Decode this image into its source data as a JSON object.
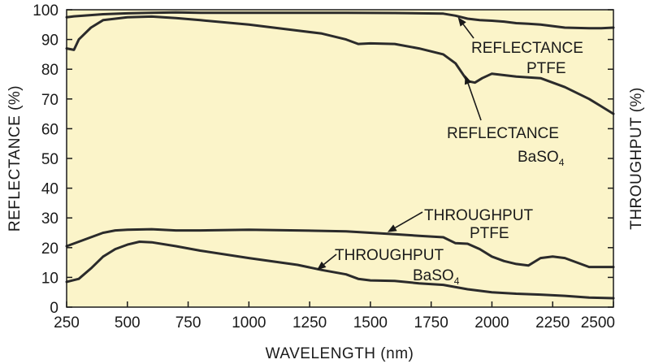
{
  "chart_data": {
    "type": "line",
    "title": "",
    "xlabel": "WAVELENGTH (nm)",
    "ylabel": "REFLECTANCE (%)",
    "ylabel_right": "THROUGHPUT (%)",
    "xlim": [
      250,
      2500
    ],
    "ylim": [
      0,
      100
    ],
    "xticks": [
      250,
      500,
      750,
      1000,
      1250,
      1500,
      1750,
      2000,
      2250,
      2500
    ],
    "yticks": [
      0,
      10,
      20,
      30,
      40,
      50,
      60,
      70,
      80,
      90,
      100
    ],
    "grid": false,
    "colors": {
      "background": "#fbf4c9",
      "line": "#2b2b2b",
      "text": "#1a1a1a"
    },
    "series": [
      {
        "name": "REFLECTANCE PTFE",
        "x": [
          250,
          280,
          400,
          500,
          600,
          700,
          800,
          1000,
          1200,
          1400,
          1600,
          1800,
          1850,
          1900,
          1950,
          2000,
          2050,
          2100,
          2150,
          2200,
          2300,
          2400,
          2450,
          2500
        ],
        "y": [
          97.5,
          97.8,
          98.5,
          98.8,
          99,
          99.1,
          99,
          99,
          99,
          99,
          98.9,
          98.7,
          98,
          97,
          96.5,
          96.3,
          96,
          95.5,
          95.3,
          95,
          94,
          93.8,
          93.8,
          94
        ]
      },
      {
        "name": "REFLECTANCE BaSO4",
        "x": [
          250,
          280,
          300,
          350,
          400,
          500,
          600,
          700,
          800,
          1000,
          1200,
          1300,
          1400,
          1450,
          1500,
          1600,
          1700,
          1800,
          1850,
          1900,
          1930,
          1960,
          2000,
          2050,
          2100,
          2200,
          2300,
          2400,
          2450,
          2500
        ],
        "y": [
          87,
          86.5,
          90,
          94,
          96.5,
          97.5,
          97.7,
          97.2,
          96.5,
          95,
          93,
          92,
          90,
          88.5,
          88.7,
          88.5,
          87,
          85,
          82,
          76,
          75.5,
          77,
          78.5,
          78,
          77.5,
          77,
          74,
          70,
          67.5,
          65
        ]
      },
      {
        "name": "THROUGHPUT PTFE",
        "x": [
          250,
          300,
          350,
          400,
          450,
          500,
          600,
          700,
          800,
          1000,
          1200,
          1400,
          1600,
          1700,
          1800,
          1850,
          1900,
          1950,
          2000,
          2050,
          2100,
          2150,
          2200,
          2250,
          2300,
          2400,
          2500
        ],
        "y": [
          20.5,
          22,
          23.5,
          25,
          25.8,
          26,
          26.2,
          25.8,
          25.8,
          26,
          25.8,
          25.5,
          24.5,
          24,
          23.5,
          21.5,
          21.3,
          19.5,
          17,
          15.5,
          14.5,
          14,
          16.5,
          17,
          16.5,
          13.5,
          13.5
        ]
      },
      {
        "name": "THROUGHPUT BaSO4",
        "x": [
          250,
          300,
          350,
          400,
          450,
          500,
          550,
          600,
          700,
          800,
          1000,
          1200,
          1300,
          1400,
          1450,
          1500,
          1600,
          1700,
          1800,
          1900,
          2000,
          2100,
          2200,
          2300,
          2400,
          2500
        ],
        "y": [
          8.5,
          9.5,
          13,
          17,
          19.5,
          21,
          22,
          21.8,
          20.5,
          19,
          16.5,
          14.2,
          12.5,
          11,
          9.5,
          9,
          8.8,
          8,
          7.5,
          6,
          5,
          4.5,
          4.2,
          3.8,
          3.2,
          3
        ]
      }
    ],
    "annotations": [
      {
        "lines": [
          "REFLECTANCE",
          "PTFE"
        ],
        "subscript": "",
        "target": [
          1860,
          97.5
        ]
      },
      {
        "lines": [
          "REFLECTANCE",
          "BaSO"
        ],
        "subscript": "4",
        "target": [
          1890,
          78
        ]
      },
      {
        "lines": [
          "THROUGHPUT",
          "PTFE"
        ],
        "subscript": "",
        "target": [
          1570,
          25.2
        ]
      },
      {
        "lines": [
          "THROUGHPUT",
          "BaSO"
        ],
        "subscript": "4",
        "target": [
          1280,
          12.5
        ]
      }
    ]
  }
}
